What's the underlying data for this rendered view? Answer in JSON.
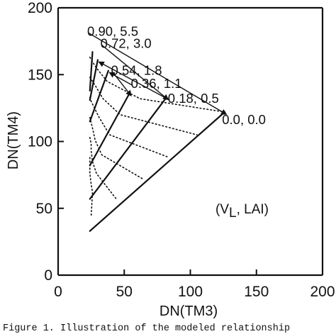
{
  "chart_data": {
    "type": "line",
    "xlabel": "DN(TM3)",
    "ylabel": "DN(TM4)",
    "xlim": [
      0,
      200
    ],
    "ylim": [
      0,
      200
    ],
    "xticks": [
      "0",
      "50",
      "100",
      "150",
      "200"
    ],
    "yticks": [
      "0",
      "50",
      "100",
      "150",
      "200"
    ],
    "grid": false,
    "annotation": "(V_L, LAI)",
    "annotation_parts": {
      "open": "(V",
      "sub": "L",
      "close": ", LAI)"
    },
    "series": [
      {
        "name": "0.0, 0.0",
        "style": "solid",
        "x": [
          24,
          126
        ],
        "y": [
          33,
          122
        ]
      },
      {
        "name": "0.18, 0.5",
        "style": "solid",
        "x": [
          24,
          82
        ],
        "y": [
          57,
          133
        ]
      },
      {
        "name": "0.36, 1.1",
        "style": "solid",
        "x": [
          24,
          54
        ],
        "y": [
          82,
          136
        ]
      },
      {
        "name": "0.54, 1.8",
        "style": "solid",
        "x": [
          24,
          38
        ],
        "y": [
          115,
          153
        ]
      },
      {
        "name": "0.72, 3.0",
        "style": "solid",
        "x": [
          24,
          30
        ],
        "y": [
          131,
          161
        ]
      },
      {
        "name": "0.90, 5.5",
        "style": "solid",
        "x": [
          24,
          26
        ],
        "y": [
          138,
          167
        ]
      },
      {
        "name": "",
        "style": "dotted",
        "x": [
          24,
          27,
          29,
          37,
          62,
          126
        ],
        "y": [
          163,
          158,
          155,
          145,
          132,
          122
        ]
      },
      {
        "name": "",
        "style": "dotted",
        "x": [
          24,
          26,
          28,
          34,
          47,
          105
        ],
        "y": [
          148,
          145,
          142,
          132,
          120,
          105
        ]
      },
      {
        "name": "",
        "style": "dotted",
        "x": [
          24,
          25,
          26,
          31,
          39,
          84
        ],
        "y": [
          133,
          130,
          128,
          118,
          105,
          88
        ]
      },
      {
        "name": "",
        "style": "dotted",
        "x": [
          24,
          25,
          26,
          28,
          33,
          64
        ],
        "y": [
          118,
          114,
          110,
          101,
          90,
          72
        ]
      },
      {
        "name": "",
        "style": "dotted",
        "x": [
          24,
          25,
          25,
          26,
          29,
          44
        ],
        "y": [
          103,
          98,
          93,
          85,
          76,
          57
        ]
      },
      {
        "name": "",
        "style": "dotted",
        "x": [
          24,
          24,
          24,
          25,
          26,
          25
        ],
        "y": [
          88,
          82,
          76,
          68,
          62,
          44
        ]
      }
    ]
  },
  "curve_labels": [
    {
      "text": "0.90, 5.5",
      "x": 22,
      "y": 179
    },
    {
      "text": "0.72, 3.0",
      "x": 32,
      "y": 170
    },
    {
      "text": "0.54, 1.8",
      "x": 40,
      "y": 150
    },
    {
      "text": "0.36, 1.1",
      "x": 55,
      "y": 140
    },
    {
      "text": "0.18, 0.5",
      "x": 83,
      "y": 129
    },
    {
      "text": "0.0, 0.0",
      "x": 124,
      "y": 113
    }
  ],
  "caption": "Figure 1.  Illustration of the modeled relationship"
}
